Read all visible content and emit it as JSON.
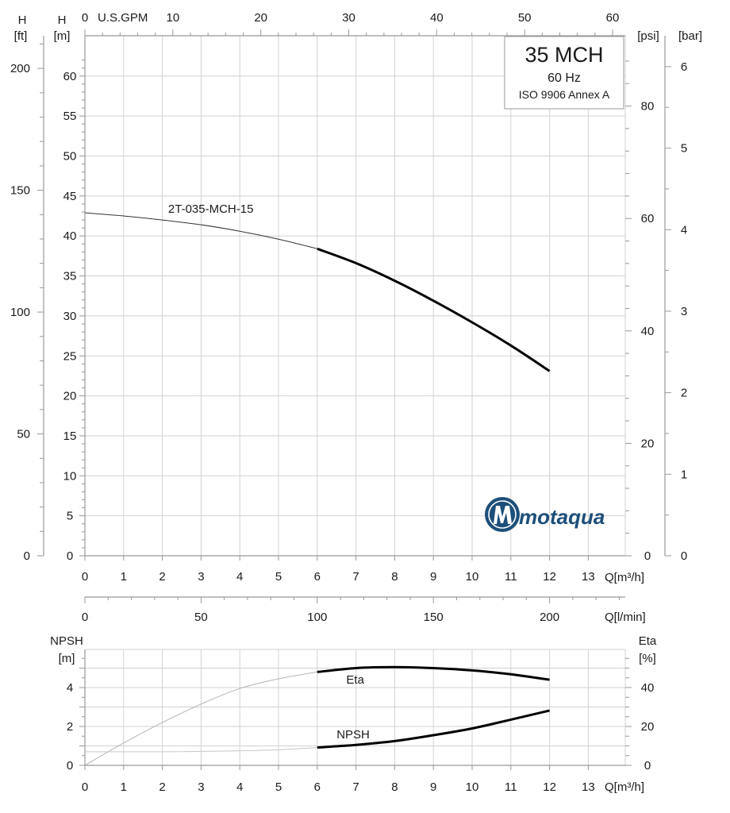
{
  "title_box": {
    "model": "35 MCH",
    "frequency": "60 Hz",
    "standard": "ISO 9906 Annex A"
  },
  "brand": {
    "name": "motaqua",
    "color": "#1d4f7a"
  },
  "axes": {
    "h_ft_label_line1": "H",
    "h_ft_label_line2": "[ft]",
    "h_m_label_line1": "H",
    "h_m_label_line2": "[m]",
    "psi_label": "[psi]",
    "bar_label": "[bar]",
    "gpm_zero": "0",
    "gpm_label": "U.S.GPM",
    "q_m3h_label": "Q[m³/h]",
    "q_lmin_label": "Q[l/min]",
    "npsh_label_line1": "NPSH",
    "npsh_label_line2": "[m]",
    "eta_label_line1": "Eta",
    "eta_label_line2": "[%]",
    "q_m3h_label_bottom": "Q[m³/h]"
  },
  "chart_data": [
    {
      "type": "line",
      "title": "35 MCH 60 Hz ISO 9906 Annex A",
      "xlabel": "Q[m³/h]",
      "ylabel": "H [m]",
      "xlim": [
        0,
        14
      ],
      "ylim": [
        0,
        65
      ],
      "x_ticks": [
        0,
        1,
        2,
        3,
        4,
        5,
        6,
        7,
        8,
        9,
        10,
        11,
        12,
        13
      ],
      "y_ticks": [
        0,
        5,
        10,
        15,
        20,
        25,
        30,
        35,
        40,
        45,
        50,
        55,
        60
      ],
      "secondary_axes": {
        "H_ft_ticks": [
          0,
          50,
          100,
          150,
          200
        ],
        "psi_ticks": [
          0,
          20,
          40,
          60,
          80
        ],
        "bar_ticks": [
          0,
          1,
          2,
          3,
          4,
          5,
          6
        ],
        "gpm_ticks": [
          10,
          20,
          30,
          40,
          50,
          60
        ],
        "lmin_ticks": [
          0,
          50,
          100,
          150,
          200
        ]
      },
      "series": [
        {
          "name": "2T-035-MCH-15",
          "label": "2T-035-MCH-15",
          "x": [
            0,
            1,
            2,
            3,
            4,
            5,
            6,
            7,
            8,
            9,
            10,
            11,
            12
          ],
          "y": [
            42.9,
            42.5,
            42.0,
            41.4,
            40.6,
            39.6,
            38.4,
            36.6,
            34.4,
            31.9,
            29.2,
            26.3,
            23.1
          ],
          "operating_range": [
            6,
            12
          ]
        }
      ]
    },
    {
      "type": "line",
      "title": "",
      "xlabel": "Q[m³/h]",
      "ylabel": "NPSH [m]",
      "y2label": "Eta [%]",
      "xlim": [
        0,
        14
      ],
      "ylim": [
        0,
        6
      ],
      "y2lim": [
        0,
        60
      ],
      "x_ticks": [
        0,
        1,
        2,
        3,
        4,
        5,
        6,
        7,
        8,
        9,
        10,
        11,
        12,
        13
      ],
      "y_ticks": [
        0,
        2,
        4
      ],
      "y2_ticks": [
        0,
        20,
        40
      ],
      "series": [
        {
          "name": "Eta",
          "label": "Eta",
          "axis": "right",
          "x": [
            0,
            1,
            2,
            3,
            4,
            5,
            6,
            7,
            8,
            9,
            10,
            11,
            12
          ],
          "y": [
            0,
            11.5,
            22,
            31.5,
            39.5,
            44.5,
            48,
            50,
            50.5,
            50,
            48.8,
            46.8,
            44
          ],
          "operating_range": [
            6,
            12
          ]
        },
        {
          "name": "NPSH",
          "label": "NPSH",
          "axis": "left",
          "x": [
            0,
            1,
            2,
            3,
            4,
            5,
            6,
            7,
            8,
            9,
            10,
            11,
            12
          ],
          "y": [
            0.7,
            0.7,
            0.7,
            0.72,
            0.75,
            0.8,
            0.92,
            1.05,
            1.25,
            1.55,
            1.9,
            2.35,
            2.82
          ],
          "operating_range": [
            6,
            12
          ]
        }
      ]
    }
  ]
}
